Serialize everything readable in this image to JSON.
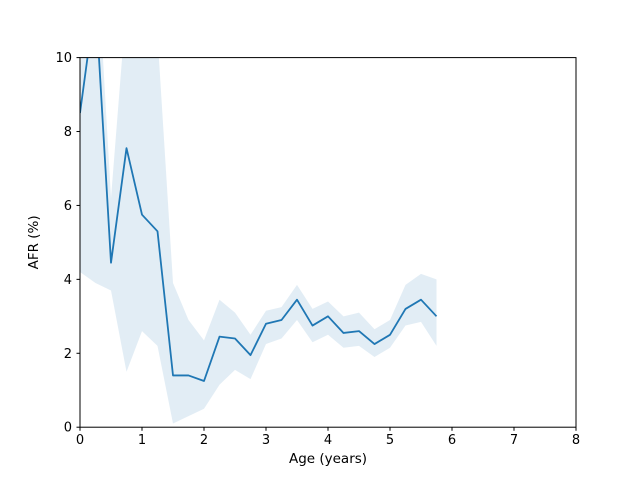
{
  "figure": {
    "background": "#ffffff",
    "plot_background": "#ffffff",
    "spine_color": "#000000"
  },
  "chart_data": {
    "type": "line",
    "title": "",
    "xlabel": "Age (years)",
    "ylabel": "AFR (%)",
    "xlim": [
      0,
      8
    ],
    "ylim": [
      0,
      10
    ],
    "xticks": [
      0,
      1,
      2,
      3,
      4,
      5,
      6,
      7,
      8
    ],
    "yticks": [
      0,
      2,
      4,
      6,
      8,
      10
    ],
    "grid": false,
    "legend_position": "none",
    "x": [
      0,
      0.25,
      0.5,
      0.75,
      1.0,
      1.25,
      1.5,
      1.75,
      2.0,
      2.25,
      2.5,
      2.75,
      3.0,
      3.25,
      3.5,
      3.75,
      4.0,
      4.25,
      4.5,
      4.75,
      5.0,
      5.25,
      5.5,
      5.75
    ],
    "series": [
      {
        "name": "AFR (%) mean line",
        "kind": "line",
        "color": "#1f77b4",
        "linewidth": 1.8,
        "values": [
          8.5,
          11.6,
          4.45,
          7.55,
          5.75,
          5.3,
          1.4,
          1.4,
          1.25,
          2.45,
          2.4,
          1.95,
          2.8,
          2.9,
          3.45,
          2.75,
          3.0,
          2.55,
          2.6,
          2.25,
          2.5,
          3.2,
          3.45,
          3.0
        ]
      },
      {
        "name": "confidence band",
        "kind": "band",
        "color": "#1f77b4",
        "opacity": 0.13,
        "lower": [
          4.2,
          3.9,
          3.7,
          1.5,
          2.6,
          2.2,
          0.1,
          0.3,
          0.5,
          1.15,
          1.55,
          1.3,
          2.25,
          2.4,
          2.9,
          2.3,
          2.5,
          2.15,
          2.2,
          1.9,
          2.15,
          2.75,
          2.85,
          2.2
        ],
        "upper": [
          9.7,
          13.5,
          6.2,
          11.5,
          11.0,
          10.6,
          3.9,
          2.9,
          2.35,
          3.45,
          3.1,
          2.5,
          3.15,
          3.25,
          3.85,
          3.2,
          3.4,
          3.0,
          3.1,
          2.65,
          2.9,
          3.85,
          4.15,
          4.0
        ]
      }
    ],
    "note": "values above ylim max (10) are clipped at the top axis boundary"
  }
}
